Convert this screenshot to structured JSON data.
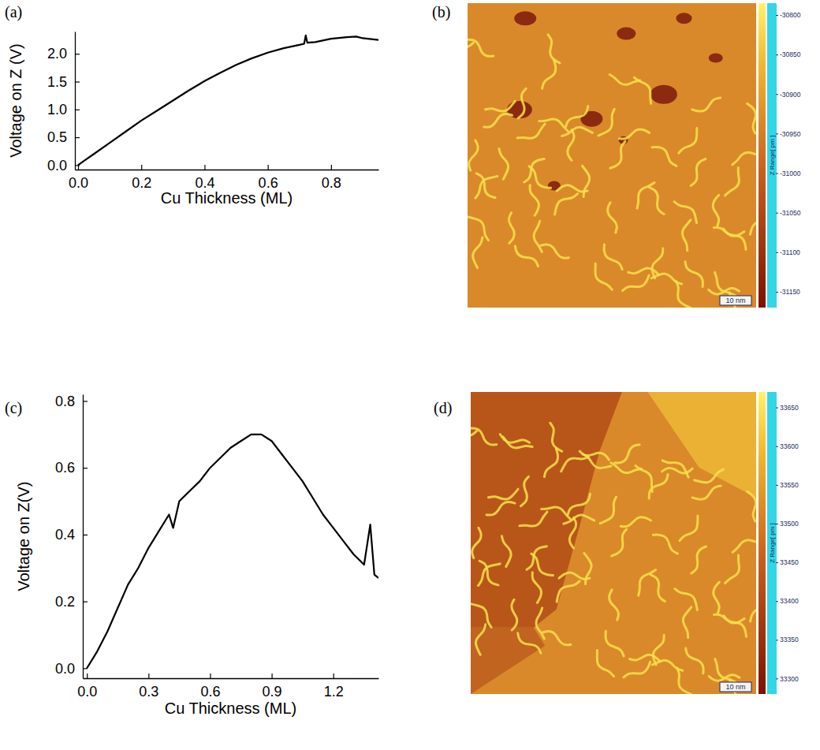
{
  "chart_data": [
    {
      "type": "line",
      "panel": "(a)",
      "x_label": "Cu Thickness (ML)",
      "y_label": "Voltage on Z (V)",
      "x": [
        0,
        0.02,
        0.05,
        0.1,
        0.15,
        0.2,
        0.25,
        0.3,
        0.35,
        0.4,
        0.45,
        0.5,
        0.55,
        0.6,
        0.65,
        0.7,
        0.715,
        0.72,
        0.725,
        0.75,
        0.8,
        0.85,
        0.88,
        0.9,
        0.95
      ],
      "series": [
        {
          "color": "#000000",
          "values": [
            0,
            0.08,
            0.2,
            0.4,
            0.6,
            0.8,
            0.98,
            1.16,
            1.34,
            1.51,
            1.66,
            1.8,
            1.92,
            2.02,
            2.1,
            2.16,
            2.18,
            2.33,
            2.2,
            2.21,
            2.27,
            2.3,
            2.31,
            2.28,
            2.25
          ]
        }
      ],
      "xlim": [
        -0.01,
        0.95
      ],
      "ylim": [
        -0.08,
        2.4
      ],
      "xticks": [
        {
          "value": 0,
          "label": "0.0"
        },
        0.2,
        0.4,
        0.6,
        0.8
      ],
      "yticks": [
        {
          "value": 0,
          "label": "0.0"
        },
        0.5,
        {
          "value": 1,
          "label": "1.0"
        },
        1.5,
        {
          "value": 2,
          "label": "2.0"
        }
      ]
    },
    {
      "type": "image",
      "panel": "(b)",
      "scale_bar": "10 nm",
      "colorbar": {
        "label": "Z Range[ pm ]",
        "range": [
          -31170,
          -30785
        ],
        "ticks": [
          -30800,
          -30850,
          -30900,
          -30950,
          -31000,
          -31050,
          -31100,
          -31150
        ]
      }
    },
    {
      "type": "line",
      "panel": "(c)",
      "x_label": "Cu Thickness (ML)",
      "y_label": "Voltage on Z(V)",
      "x": [
        0,
        0.05,
        0.1,
        0.15,
        0.2,
        0.25,
        0.3,
        0.35,
        0.4,
        0.42,
        0.45,
        0.5,
        0.55,
        0.6,
        0.65,
        0.7,
        0.75,
        0.8,
        0.85,
        0.9,
        0.95,
        1.0,
        1.05,
        1.1,
        1.15,
        1.2,
        1.25,
        1.3,
        1.35,
        1.38,
        1.4,
        1.42
      ],
      "series": [
        {
          "color": "#000000",
          "values": [
            0,
            0.05,
            0.11,
            0.18,
            0.25,
            0.3,
            0.36,
            0.41,
            0.46,
            0.42,
            0.5,
            0.53,
            0.56,
            0.6,
            0.63,
            0.66,
            0.68,
            0.7,
            0.7,
            0.68,
            0.64,
            0.6,
            0.56,
            0.51,
            0.46,
            0.42,
            0.38,
            0.34,
            0.31,
            0.43,
            0.28,
            0.27
          ]
        }
      ],
      "xlim": [
        -0.02,
        1.42
      ],
      "ylim": [
        -0.03,
        0.82
      ],
      "xticks": [
        {
          "value": 0,
          "label": "0.0"
        },
        0.3,
        0.6,
        0.9,
        1.2
      ],
      "yticks": [
        {
          "value": 0,
          "label": "0.0"
        },
        0.2,
        0.4,
        0.6,
        0.8
      ]
    },
    {
      "type": "image",
      "panel": "(d)",
      "scale_bar": "10 nm",
      "colorbar": {
        "label": "Z Range[ pm ]",
        "range": [
          33280,
          33670
        ],
        "ticks": [
          33650,
          33600,
          33550,
          33500,
          33450,
          33400,
          33350,
          33300
        ]
      }
    }
  ]
}
